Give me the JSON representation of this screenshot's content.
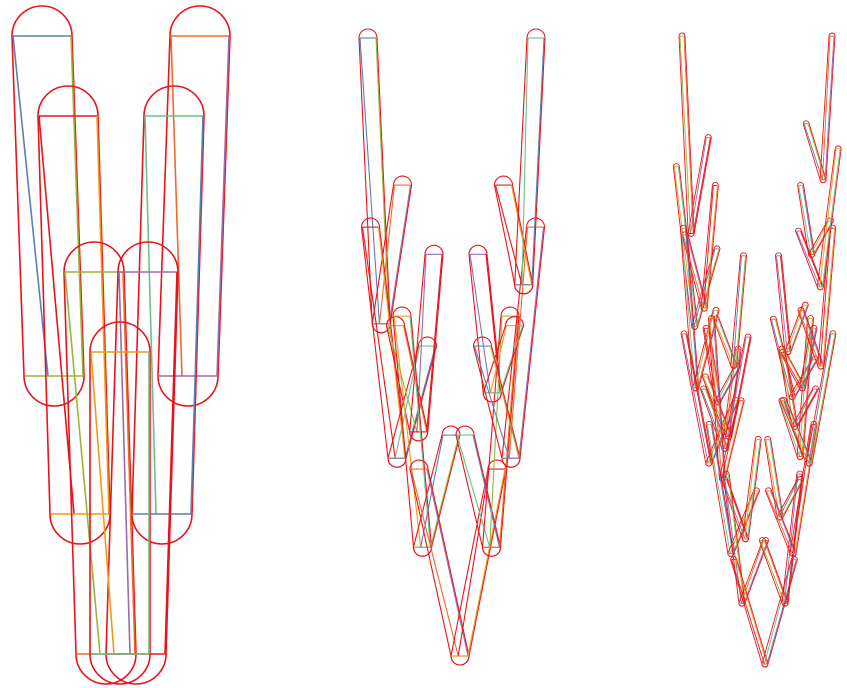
{
  "figure": {
    "description_free": true,
    "panels": [
      {
        "id": "panel-depth-1",
        "depth": 1
      },
      {
        "id": "panel-depth-2",
        "depth": 2
      },
      {
        "id": "panel-depth-3",
        "depth": 3
      }
    ],
    "colors": {
      "background": "#ffffff",
      "outline": "#e8141c",
      "line_palette": [
        "#5b7fb5",
        "#9ab53a",
        "#ef6a2a",
        "#9b6bab",
        "#e8141c",
        "#f09a1a",
        "#6fbf8a"
      ]
    }
  }
}
